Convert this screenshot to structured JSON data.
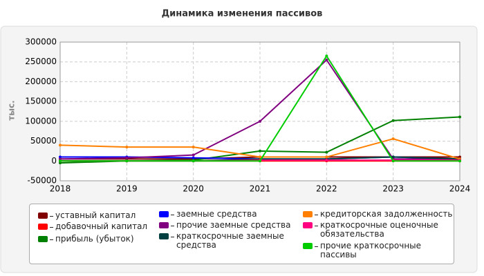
{
  "chart_data": {
    "type": "line",
    "title": "Динамика изменения пассивов",
    "y_label": "тыс.",
    "x": [
      2018,
      2019,
      2020,
      2021,
      2022,
      2023,
      2024
    ],
    "xlim": [
      2018,
      2024
    ],
    "xticks": [
      2018,
      2019,
      2020,
      2021,
      2022,
      2023,
      2024
    ],
    "ylim": [
      -50000,
      300000
    ],
    "yticks": [
      -50000,
      0,
      50000,
      100000,
      150000,
      200000,
      250000,
      300000
    ],
    "grid": true,
    "legend": "bottom",
    "series": [
      {
        "name": "уставный капитал",
        "color": "#800000",
        "values": [
          5000,
          5000,
          5000,
          10000,
          10000,
          10000,
          10000
        ]
      },
      {
        "name": "добавочный капитал",
        "color": "#ff0000",
        "values": [
          0,
          0,
          0,
          0,
          0,
          0,
          0
        ]
      },
      {
        "name": "прибыль (убыток)",
        "color": "#008000",
        "values": [
          -5000,
          0,
          2000,
          25000,
          22000,
          102000,
          111000
        ]
      },
      {
        "name": "заемные средства",
        "color": "#0000ff",
        "values": [
          10000,
          10000,
          8000,
          5000,
          5000,
          10000,
          5000
        ]
      },
      {
        "name": "прочие заемные средства",
        "color": "#800080",
        "values": [
          5000,
          8000,
          15000,
          100000,
          255000,
          5000,
          5000
        ]
      },
      {
        "name": "краткосрочные заемные средства",
        "color": "#004040",
        "values": [
          0,
          0,
          0,
          5000,
          5000,
          10000,
          5000
        ]
      },
      {
        "name": "кредиторская задолженность",
        "color": "#ff8000",
        "values": [
          40000,
          35000,
          35000,
          10000,
          10000,
          56000,
          5000
        ]
      },
      {
        "name": "краткосрочные оценочные обязательства",
        "color": "#ff0080",
        "values": [
          0,
          0,
          0,
          2000,
          2000,
          2000,
          2000
        ]
      },
      {
        "name": "прочие краткосрочные пассивы",
        "color": "#00cc00",
        "values": [
          0,
          0,
          0,
          0,
          265000,
          0,
          0
        ]
      }
    ]
  }
}
